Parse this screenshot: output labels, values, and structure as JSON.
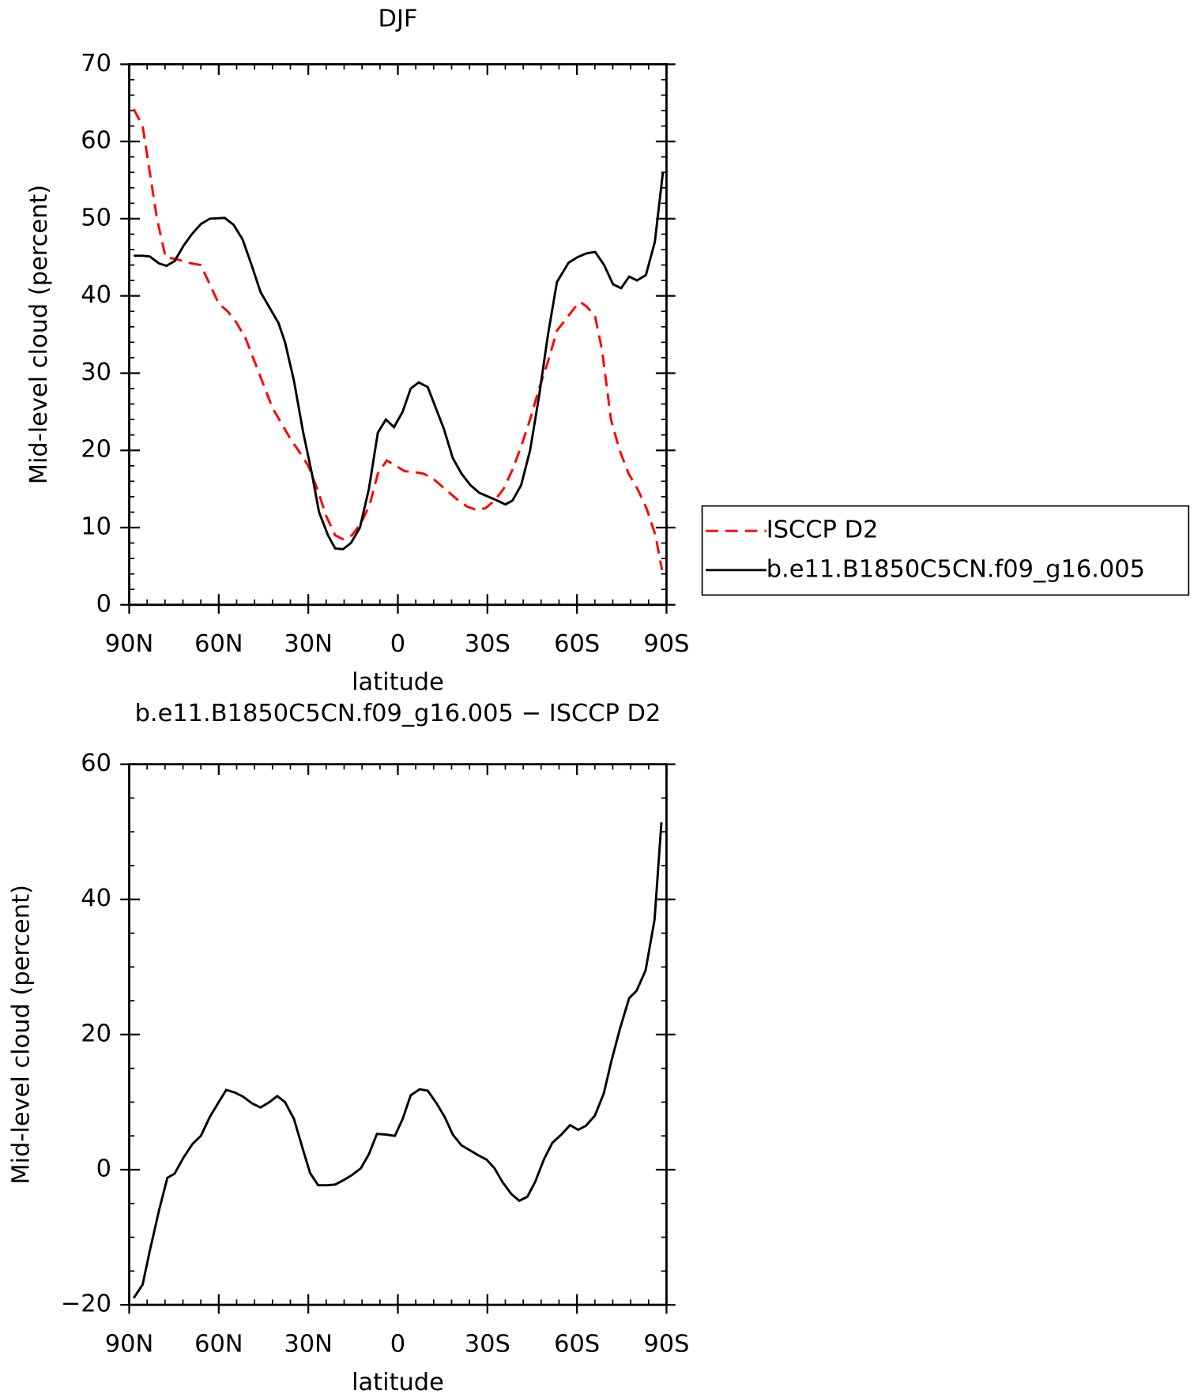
{
  "chart_data": [
    {
      "type": "line",
      "title": "DJF",
      "xlabel": "latitude",
      "ylabel": "Mid-level cloud (percent)",
      "xlim": [
        90,
        -90
      ],
      "xticks": [
        {
          "value": 90,
          "label": "90N"
        },
        {
          "value": 60,
          "label": "60N"
        },
        {
          "value": 30,
          "label": "30N"
        },
        0,
        {
          "value": -30,
          "label": "30S"
        },
        {
          "value": -60,
          "label": "60S"
        },
        {
          "value": -90,
          "label": "90S"
        }
      ],
      "ylim": [
        0,
        70
      ],
      "yticks": [
        0,
        10,
        20,
        30,
        40,
        50,
        60,
        70
      ],
      "legend": "outside right",
      "series": [
        {
          "name": "ISCCP D2",
          "color": "#ff0000",
          "dash": "dashed",
          "x": [
            88.5,
            85.5,
            83.1,
            80.7,
            77.8,
            74.8,
            71.8,
            69,
            66,
            63,
            60,
            57,
            54,
            51,
            48,
            45,
            42,
            39,
            36,
            33,
            30,
            27,
            24,
            21,
            18.4,
            15.4,
            12.4,
            9.4,
            6.7,
            3.7,
            0.7,
            -2.3,
            -5.4,
            -8.4,
            -11.3,
            -14.3,
            -17.3,
            -20.3,
            -23.3,
            -26.3,
            -29.3,
            -32.4,
            -35.4,
            -38.4,
            -41.3,
            -44.3,
            -47.3,
            -50.3,
            -53.3,
            -56.3,
            -59.3,
            -61.2,
            -63,
            -66,
            -68.4,
            -71.4,
            -74.3,
            -77.3,
            -80.3,
            -83.3,
            -86.3,
            -88.5
          ],
          "values": [
            64.2,
            62,
            56,
            50,
            45,
            44.8,
            44.5,
            44.2,
            44,
            41.5,
            39,
            38,
            36.5,
            34.5,
            31.5,
            28.5,
            25.5,
            23.5,
            21.5,
            19.8,
            18,
            15,
            11.5,
            9,
            8.5,
            9,
            10.5,
            13,
            17,
            18.7,
            18,
            17.3,
            17.2,
            17,
            16.5,
            15.5,
            14.5,
            13.5,
            12.7,
            12.3,
            12.5,
            13.5,
            15,
            17.5,
            20.5,
            24,
            28,
            31.5,
            35.5,
            37,
            38.5,
            39.2,
            38.7,
            37.5,
            33,
            24,
            20,
            17,
            15,
            12.5,
            9,
            4.5
          ]
        },
        {
          "name": "b.e11.B1850C5CN.f09_g16.005",
          "color": "#000000",
          "dash": "solid",
          "x": [
            88.5,
            85.5,
            83.1,
            80,
            77.5,
            74.8,
            71.8,
            69,
            66,
            63,
            58,
            55,
            52,
            49,
            46,
            43,
            40,
            37.8,
            34.8,
            31.8,
            28.8,
            26.4,
            23.4,
            21,
            18.4,
            15.7,
            12.7,
            9.7,
            6.7,
            4,
            1.3,
            -1.6,
            -4.3,
            -7,
            -10,
            -12.4,
            -15.4,
            -18.4,
            -21.3,
            -24.3,
            -27.3,
            -30.3,
            -33.3,
            -36,
            -38.4,
            -41.3,
            -44.3,
            -47.3,
            -50.3,
            -53.3,
            -57.2,
            -60.1,
            -63.1,
            -66.1,
            -69.1,
            -72.1,
            -74.8,
            -77.5,
            -80.1,
            -83.1,
            -86.1,
            -88.8
          ],
          "values": [
            45.2,
            45.2,
            45.1,
            44.2,
            43.9,
            44.5,
            46.5,
            48,
            49.3,
            50,
            50.1,
            49.2,
            47.3,
            44,
            40.5,
            38.5,
            36.5,
            34,
            29,
            22.5,
            17,
            12,
            9,
            7.3,
            7.2,
            8,
            10,
            15,
            22.3,
            24,
            23,
            25,
            28,
            28.8,
            28.2,
            25.8,
            22.8,
            19,
            17,
            15.5,
            14.5,
            14,
            13.5,
            13,
            13.5,
            15.5,
            20,
            27,
            35,
            41.8,
            44.3,
            45,
            45.5,
            45.7,
            44,
            41.5,
            41,
            42.5,
            42,
            42.7,
            47,
            56
          ]
        }
      ]
    },
    {
      "type": "line",
      "title": "b.e11.B1850C5CN.f09_g16.005 − ISCCP D2",
      "xlabel": "latitude",
      "ylabel": "Mid-level cloud (percent)",
      "xlim": [
        90,
        -90
      ],
      "xticks": [
        {
          "value": 90,
          "label": "90N"
        },
        {
          "value": 60,
          "label": "60N"
        },
        {
          "value": 30,
          "label": "30N"
        },
        0,
        {
          "value": -30,
          "label": "30S"
        },
        {
          "value": -60,
          "label": "60S"
        },
        {
          "value": -90,
          "label": "90S"
        }
      ],
      "ylim": [
        -20,
        60
      ],
      "yticks": [
        {
          "value": -20,
          "label": "−20"
        },
        0,
        20,
        40,
        60
      ],
      "series": [
        {
          "color": "#000000",
          "dash": "solid",
          "x": [
            88.5,
            85.5,
            83.1,
            80,
            77.2,
            74.8,
            71.8,
            68.8,
            66,
            63,
            60,
            57.5,
            54.5,
            51.8,
            48.8,
            46,
            43,
            40.4,
            37.8,
            34.8,
            31.8,
            29.4,
            26.7,
            23.7,
            21,
            18,
            15.4,
            12.4,
            9.7,
            7,
            4,
            1,
            -1.6,
            -4.3,
            -7.3,
            -10,
            -13,
            -15.7,
            -18.4,
            -21.3,
            -24,
            -26.7,
            -29.7,
            -32.4,
            -35,
            -38,
            -40.7,
            -43.4,
            -46,
            -49,
            -51.8,
            -54.8,
            -57.7,
            -60.4,
            -63,
            -66,
            -69,
            -71.5,
            -74.5,
            -77.5,
            -80,
            -83,
            -86,
            -88.3
          ],
          "values": [
            -19,
            -17,
            -12,
            -6,
            -1.2,
            -0.6,
            1.8,
            3.8,
            5,
            7.8,
            10,
            11.8,
            11.4,
            10.8,
            9.8,
            9.2,
            10,
            10.9,
            10,
            7.5,
            3,
            -0.5,
            -2.3,
            -2.3,
            -2.2,
            -1.5,
            -0.8,
            0.2,
            2.3,
            5.3,
            5.2,
            5,
            7.5,
            11,
            11.9,
            11.7,
            9.8,
            7.8,
            5.2,
            3.6,
            2.9,
            2.2,
            1.5,
            0.2,
            -1.8,
            -3.6,
            -4.6,
            -4,
            -1.8,
            1.6,
            4,
            5.2,
            6.6,
            5.9,
            6.5,
            8,
            11.3,
            16,
            21,
            25.4,
            26.5,
            29.5,
            37,
            51.4
          ]
        }
      ]
    }
  ]
}
